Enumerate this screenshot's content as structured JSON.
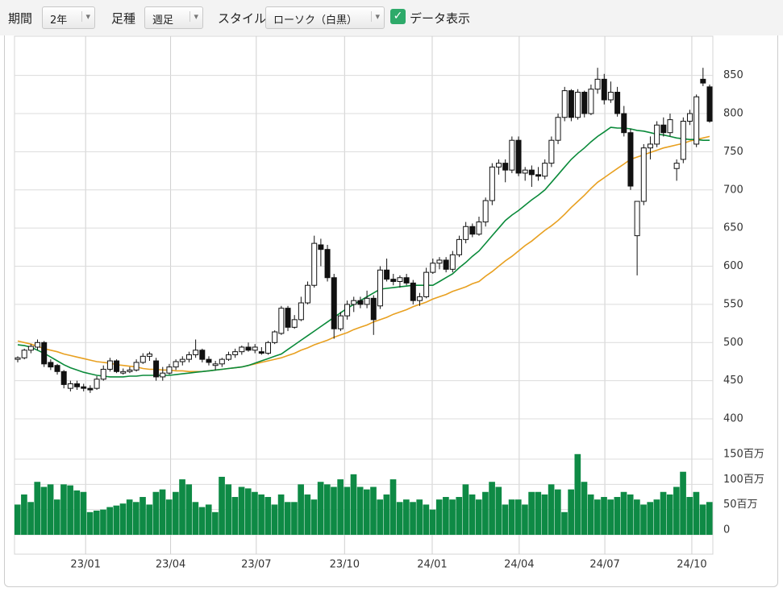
{
  "toolbar": {
    "period_label": "期間",
    "period": "2年",
    "bar_label": "足種",
    "bar": "週足",
    "style_label": "スタイル",
    "style": "ローソク（白黒）",
    "show_data": "データ表示"
  },
  "chart_data": {
    "type": "candlestick",
    "candles": [
      [
        478,
        482,
        474,
        480
      ],
      [
        480,
        492,
        478,
        490
      ],
      [
        490,
        498,
        486,
        495
      ],
      [
        494,
        504,
        490,
        500
      ],
      [
        500,
        502,
        468,
        472
      ],
      [
        474,
        478,
        464,
        468
      ],
      [
        470,
        472,
        458,
        462
      ],
      [
        462,
        464,
        440,
        445
      ],
      [
        440,
        450,
        436,
        446
      ],
      [
        446,
        450,
        438,
        442
      ],
      [
        442,
        446,
        436,
        440
      ],
      [
        440,
        444,
        434,
        438
      ],
      [
        440,
        456,
        438,
        452
      ],
      [
        452,
        470,
        450,
        465
      ],
      [
        465,
        480,
        462,
        476
      ],
      [
        476,
        478,
        460,
        462
      ],
      [
        460,
        466,
        458,
        462
      ],
      [
        462,
        468,
        460,
        464
      ],
      [
        464,
        478,
        462,
        474
      ],
      [
        474,
        486,
        472,
        482
      ],
      [
        482,
        488,
        476,
        485
      ],
      [
        476,
        480,
        450,
        455
      ],
      [
        455,
        468,
        450,
        460
      ],
      [
        460,
        472,
        458,
        468
      ],
      [
        468,
        478,
        464,
        475
      ],
      [
        475,
        482,
        470,
        478
      ],
      [
        478,
        488,
        474,
        484
      ],
      [
        484,
        504,
        480,
        490
      ],
      [
        490,
        492,
        474,
        478
      ],
      [
        478,
        482,
        470,
        474
      ],
      [
        470,
        476,
        464,
        472
      ],
      [
        472,
        480,
        468,
        478
      ],
      [
        478,
        488,
        476,
        484
      ],
      [
        484,
        492,
        480,
        488
      ],
      [
        488,
        496,
        484,
        494
      ],
      [
        494,
        500,
        488,
        490
      ],
      [
        490,
        498,
        486,
        494
      ],
      [
        488,
        494,
        484,
        486
      ],
      [
        486,
        502,
        484,
        500
      ],
      [
        500,
        516,
        498,
        514
      ],
      [
        512,
        548,
        510,
        545
      ],
      [
        545,
        548,
        515,
        520
      ],
      [
        520,
        536,
        518,
        530
      ],
      [
        530,
        560,
        528,
        552
      ],
      [
        552,
        580,
        550,
        575
      ],
      [
        575,
        640,
        572,
        630
      ],
      [
        628,
        636,
        600,
        622
      ],
      [
        622,
        628,
        580,
        585
      ],
      [
        585,
        590,
        505,
        518
      ],
      [
        518,
        540,
        515,
        535
      ],
      [
        535,
        555,
        530,
        550
      ],
      [
        550,
        560,
        540,
        555
      ],
      [
        555,
        560,
        545,
        550
      ],
      [
        550,
        568,
        545,
        558
      ],
      [
        558,
        562,
        510,
        530
      ],
      [
        548,
        600,
        544,
        595
      ],
      [
        595,
        610,
        580,
        583
      ],
      [
        583,
        590,
        575,
        580
      ],
      [
        580,
        588,
        572,
        585
      ],
      [
        585,
        590,
        575,
        578
      ],
      [
        578,
        582,
        550,
        555
      ],
      [
        555,
        565,
        548,
        560
      ],
      [
        560,
        598,
        558,
        592
      ],
      [
        592,
        610,
        590,
        604
      ],
      [
        604,
        612,
        596,
        608
      ],
      [
        608,
        612,
        592,
        596
      ],
      [
        596,
        620,
        592,
        615
      ],
      [
        615,
        640,
        612,
        635
      ],
      [
        635,
        658,
        630,
        652
      ],
      [
        652,
        656,
        638,
        642
      ],
      [
        642,
        665,
        640,
        658
      ],
      [
        658,
        690,
        652,
        686
      ],
      [
        686,
        735,
        680,
        730
      ],
      [
        730,
        740,
        720,
        735
      ],
      [
        735,
        740,
        710,
        726
      ],
      [
        726,
        770,
        722,
        765
      ],
      [
        765,
        770,
        718,
        722
      ],
      [
        722,
        730,
        712,
        726
      ],
      [
        726,
        732,
        704,
        720
      ],
      [
        720,
        730,
        712,
        718
      ],
      [
        718,
        740,
        714,
        735
      ],
      [
        735,
        770,
        730,
        765
      ],
      [
        765,
        800,
        760,
        795
      ],
      [
        795,
        835,
        790,
        830
      ],
      [
        830,
        832,
        790,
        795
      ],
      [
        795,
        832,
        792,
        828
      ],
      [
        828,
        830,
        795,
        800
      ],
      [
        800,
        838,
        798,
        832
      ],
      [
        832,
        860,
        826,
        845
      ],
      [
        845,
        852,
        812,
        818
      ],
      [
        818,
        842,
        814,
        828
      ],
      [
        828,
        835,
        796,
        800
      ],
      [
        800,
        810,
        770,
        775
      ],
      [
        775,
        780,
        700,
        705
      ],
      [
        640,
        685,
        588,
        685
      ],
      [
        685,
        760,
        680,
        755
      ],
      [
        755,
        770,
        740,
        760
      ],
      [
        760,
        790,
        756,
        785
      ],
      [
        785,
        795,
        770,
        775
      ],
      [
        775,
        800,
        770,
        792
      ],
      [
        728,
        740,
        712,
        735
      ],
      [
        740,
        795,
        735,
        790
      ],
      [
        790,
        805,
        785,
        800
      ],
      [
        760,
        825,
        756,
        822
      ],
      [
        845,
        860,
        836,
        840
      ],
      [
        835,
        838,
        788,
        790
      ]
    ],
    "up_color": "#ffffff",
    "down_color": "#111111",
    "volume": [
      60,
      80,
      65,
      105,
      95,
      100,
      70,
      100,
      98,
      88,
      85,
      45,
      48,
      50,
      55,
      58,
      62,
      70,
      65,
      75,
      60,
      85,
      90,
      70,
      85,
      110,
      100,
      65,
      55,
      60,
      45,
      115,
      100,
      75,
      95,
      92,
      85,
      80,
      75,
      60,
      80,
      65,
      65,
      100,
      80,
      70,
      105,
      100,
      95,
      110,
      95,
      120,
      95,
      90,
      95,
      70,
      80,
      110,
      65,
      70,
      65,
      70,
      60,
      50,
      70,
      75,
      70,
      75,
      100,
      80,
      70,
      85,
      105,
      95,
      60,
      70,
      70,
      60,
      85,
      85,
      80,
      100,
      90,
      45,
      90,
      160,
      105,
      80,
      70,
      75,
      70,
      75,
      85,
      80,
      70,
      60,
      65,
      70,
      85,
      80,
      95,
      125,
      75,
      85,
      60,
      65
    ],
    "volume_color": "#0e8a45",
    "ma_short": {
      "color": "#0a8a3a",
      "values": [
        497,
        496,
        494,
        490,
        486,
        481,
        476,
        471,
        467,
        464,
        461,
        459,
        457,
        456,
        455,
        455,
        455,
        456,
        456,
        457,
        457,
        457,
        457,
        457,
        458,
        459,
        460,
        461,
        462,
        463,
        464,
        465,
        466,
        467,
        468,
        470,
        473,
        476,
        479,
        482,
        485,
        491,
        497,
        503,
        509,
        515,
        521,
        527,
        533,
        539,
        545,
        550,
        555,
        560,
        565,
        570,
        571,
        572,
        573,
        574,
        575,
        575,
        575,
        575,
        580,
        585,
        590,
        598,
        605,
        613,
        620,
        630,
        640,
        650,
        660,
        667,
        673,
        680,
        687,
        693,
        700,
        710,
        720,
        730,
        740,
        748,
        755,
        763,
        770,
        776,
        782,
        781,
        781,
        780,
        778,
        777,
        775,
        773,
        772,
        770,
        768,
        767,
        766,
        766,
        765,
        765
      ]
    },
    "ma_long": {
      "color": "#e8a020",
      "values": [
        502,
        500,
        498,
        495,
        492,
        490,
        488,
        485,
        483,
        481,
        479,
        477,
        475,
        474,
        473,
        471,
        470,
        469,
        468,
        466,
        465,
        465,
        464,
        464,
        463,
        463,
        462,
        462,
        462,
        463,
        464,
        465,
        466,
        467,
        468,
        470,
        472,
        474,
        476,
        478,
        480,
        483,
        486,
        490,
        493,
        497,
        500,
        503,
        507,
        510,
        513,
        517,
        520,
        523,
        527,
        530,
        533,
        537,
        540,
        543,
        547,
        550,
        553,
        557,
        560,
        563,
        567,
        570,
        573,
        577,
        580,
        587,
        593,
        600,
        607,
        613,
        620,
        627,
        633,
        640,
        647,
        653,
        660,
        668,
        677,
        685,
        693,
        702,
        710,
        716,
        722,
        728,
        734,
        740,
        743,
        746,
        749,
        752,
        755,
        757,
        759,
        761,
        764,
        766,
        768,
        770
      ]
    },
    "ylim": [
      380,
      895
    ],
    "yticks": [
      400,
      450,
      500,
      550,
      600,
      650,
      700,
      750,
      800,
      850
    ],
    "volume_ylim": [
      0,
      190
    ],
    "volume_ticks": [
      0,
      {
        "value": 50,
        "label": "50百万"
      },
      {
        "value": 100,
        "label": "100百万"
      },
      {
        "value": 150,
        "label": "150百万"
      }
    ],
    "xticks": [
      {
        "value": 10.3,
        "label": "23/01"
      },
      {
        "value": 23.2,
        "label": "23/04"
      },
      {
        "value": 36.2,
        "label": "23/07"
      },
      {
        "value": 49.6,
        "label": "23/10"
      },
      {
        "value": 62.9,
        "label": "24/01"
      },
      {
        "value": 76.1,
        "label": "24/04"
      },
      {
        "value": 89.1,
        "label": "24/07"
      },
      {
        "value": 102.3,
        "label": "24/10"
      }
    ],
    "grid": true
  }
}
